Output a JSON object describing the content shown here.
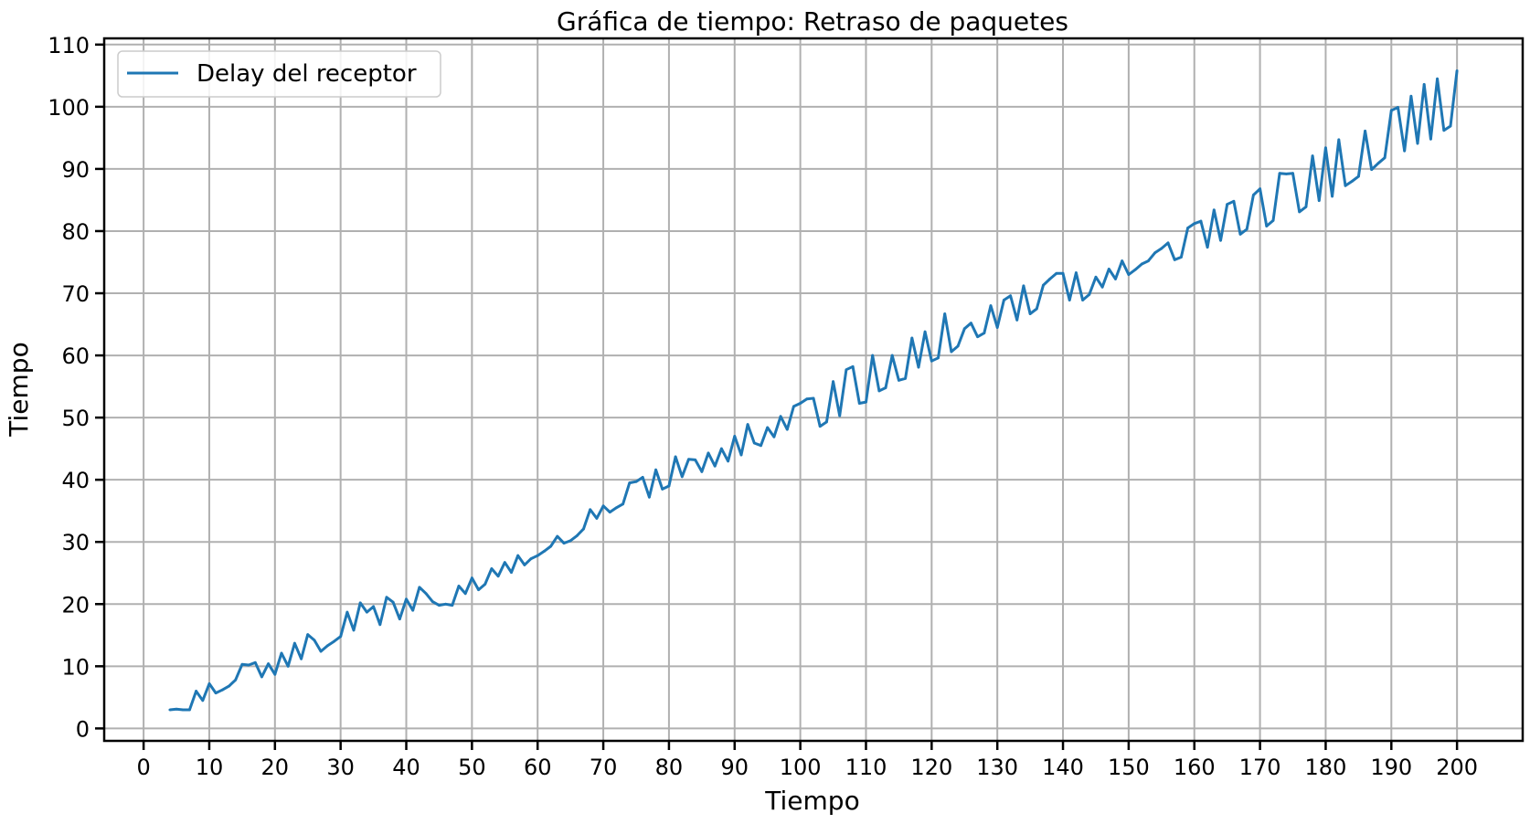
{
  "chart_data": {
    "type": "line",
    "title": "Gráfica de tiempo: Retraso de paquetes",
    "xlabel": "Tiempo",
    "ylabel": "Tiempo",
    "xlim": [
      -6,
      210
    ],
    "ylim": [
      -2,
      111
    ],
    "xticks": [
      0,
      10,
      20,
      30,
      40,
      50,
      60,
      70,
      80,
      90,
      100,
      110,
      120,
      130,
      140,
      150,
      160,
      170,
      180,
      190,
      200
    ],
    "yticks": [
      0,
      10,
      20,
      30,
      40,
      50,
      60,
      70,
      80,
      90,
      100,
      110
    ],
    "grid": true,
    "legend_position": "upper left",
    "series": [
      {
        "name": "Delay del receptor",
        "color": "#1f77b4",
        "points": [
          [
            4,
            3.0
          ],
          [
            5,
            3.1
          ],
          [
            6,
            3.0
          ],
          [
            7,
            3.0
          ],
          [
            8,
            6.0
          ],
          [
            9,
            4.5
          ],
          [
            10,
            7.2
          ],
          [
            11,
            5.7
          ],
          [
            12,
            6.2
          ],
          [
            13,
            6.8
          ],
          [
            14,
            7.8
          ],
          [
            15,
            10.3
          ],
          [
            16,
            10.2
          ],
          [
            17,
            10.6
          ],
          [
            18,
            8.3
          ],
          [
            19,
            10.4
          ],
          [
            20,
            8.7
          ],
          [
            21,
            12.1
          ],
          [
            22,
            10.0
          ],
          [
            23,
            13.7
          ],
          [
            24,
            11.2
          ],
          [
            25,
            15.1
          ],
          [
            26,
            14.2
          ],
          [
            27,
            12.4
          ],
          [
            28,
            13.3
          ],
          [
            29,
            14.0
          ],
          [
            30,
            14.8
          ],
          [
            31,
            18.7
          ],
          [
            32,
            15.8
          ],
          [
            33,
            20.2
          ],
          [
            34,
            18.7
          ],
          [
            35,
            19.6
          ],
          [
            36,
            16.7
          ],
          [
            37,
            21.1
          ],
          [
            38,
            20.3
          ],
          [
            39,
            17.6
          ],
          [
            40,
            20.8
          ],
          [
            41,
            19.0
          ],
          [
            42,
            22.7
          ],
          [
            43,
            21.7
          ],
          [
            44,
            20.4
          ],
          [
            45,
            19.8
          ],
          [
            46,
            20.0
          ],
          [
            47,
            19.8
          ],
          [
            48,
            22.9
          ],
          [
            49,
            21.7
          ],
          [
            50,
            24.2
          ],
          [
            51,
            22.3
          ],
          [
            52,
            23.2
          ],
          [
            53,
            25.7
          ],
          [
            54,
            24.5
          ],
          [
            55,
            26.7
          ],
          [
            56,
            25.1
          ],
          [
            57,
            27.8
          ],
          [
            58,
            26.3
          ],
          [
            59,
            27.3
          ],
          [
            60,
            27.8
          ],
          [
            61,
            28.5
          ],
          [
            62,
            29.3
          ],
          [
            63,
            30.9
          ],
          [
            64,
            29.8
          ],
          [
            65,
            30.2
          ],
          [
            66,
            31.0
          ],
          [
            67,
            32.1
          ],
          [
            68,
            35.2
          ],
          [
            69,
            33.8
          ],
          [
            70,
            35.8
          ],
          [
            71,
            34.8
          ],
          [
            72,
            35.5
          ],
          [
            73,
            36.1
          ],
          [
            74,
            39.5
          ],
          [
            75,
            39.7
          ],
          [
            76,
            40.4
          ],
          [
            77,
            37.2
          ],
          [
            78,
            41.6
          ],
          [
            79,
            38.5
          ],
          [
            80,
            39.0
          ],
          [
            81,
            43.7
          ],
          [
            82,
            40.5
          ],
          [
            83,
            43.3
          ],
          [
            84,
            43.2
          ],
          [
            85,
            41.3
          ],
          [
            86,
            44.3
          ],
          [
            87,
            42.2
          ],
          [
            88,
            45.0
          ],
          [
            89,
            43.0
          ],
          [
            90,
            47.0
          ],
          [
            91,
            44.0
          ],
          [
            92,
            48.9
          ],
          [
            93,
            45.9
          ],
          [
            94,
            45.5
          ],
          [
            95,
            48.4
          ],
          [
            96,
            46.9
          ],
          [
            97,
            50.2
          ],
          [
            98,
            48.1
          ],
          [
            99,
            51.8
          ],
          [
            100,
            52.3
          ],
          [
            101,
            53.0
          ],
          [
            102,
            53.1
          ],
          [
            103,
            48.6
          ],
          [
            104,
            49.3
          ],
          [
            105,
            55.8
          ],
          [
            106,
            50.3
          ],
          [
            107,
            57.7
          ],
          [
            108,
            58.2
          ],
          [
            109,
            52.3
          ],
          [
            110,
            52.5
          ],
          [
            111,
            60.0
          ],
          [
            112,
            54.3
          ],
          [
            113,
            54.8
          ],
          [
            114,
            60.0
          ],
          [
            115,
            56.0
          ],
          [
            116,
            56.3
          ],
          [
            117,
            62.8
          ],
          [
            118,
            58.1
          ],
          [
            119,
            63.8
          ],
          [
            120,
            59.1
          ],
          [
            121,
            59.6
          ],
          [
            122,
            66.7
          ],
          [
            123,
            60.6
          ],
          [
            124,
            61.5
          ],
          [
            125,
            64.3
          ],
          [
            126,
            65.2
          ],
          [
            127,
            63.0
          ],
          [
            128,
            63.6
          ],
          [
            129,
            68.0
          ],
          [
            130,
            64.5
          ],
          [
            131,
            68.9
          ],
          [
            132,
            69.6
          ],
          [
            133,
            65.7
          ],
          [
            134,
            71.2
          ],
          [
            135,
            66.7
          ],
          [
            136,
            67.5
          ],
          [
            137,
            71.3
          ],
          [
            138,
            72.3
          ],
          [
            139,
            73.2
          ],
          [
            140,
            73.2
          ],
          [
            141,
            68.9
          ],
          [
            142,
            73.3
          ],
          [
            143,
            68.9
          ],
          [
            144,
            69.8
          ],
          [
            145,
            72.6
          ],
          [
            146,
            71.0
          ],
          [
            147,
            73.9
          ],
          [
            148,
            72.3
          ],
          [
            149,
            75.2
          ],
          [
            150,
            73.0
          ],
          [
            151,
            73.8
          ],
          [
            152,
            74.7
          ],
          [
            153,
            75.2
          ],
          [
            154,
            76.5
          ],
          [
            155,
            77.2
          ],
          [
            156,
            78.1
          ],
          [
            157,
            75.4
          ],
          [
            158,
            75.8
          ],
          [
            159,
            80.5
          ],
          [
            160,
            81.2
          ],
          [
            161,
            81.6
          ],
          [
            162,
            77.4
          ],
          [
            163,
            83.4
          ],
          [
            164,
            78.5
          ],
          [
            165,
            84.3
          ],
          [
            166,
            84.8
          ],
          [
            167,
            79.5
          ],
          [
            168,
            80.3
          ],
          [
            169,
            85.8
          ],
          [
            170,
            86.8
          ],
          [
            171,
            80.8
          ],
          [
            172,
            81.7
          ],
          [
            173,
            89.3
          ],
          [
            174,
            89.2
          ],
          [
            175,
            89.3
          ],
          [
            176,
            83.1
          ],
          [
            177,
            83.9
          ],
          [
            178,
            92.1
          ],
          [
            179,
            84.9
          ],
          [
            180,
            93.4
          ],
          [
            181,
            85.6
          ],
          [
            182,
            94.7
          ],
          [
            183,
            87.3
          ],
          [
            184,
            88.0
          ],
          [
            185,
            88.8
          ],
          [
            186,
            96.1
          ],
          [
            187,
            89.9
          ],
          [
            188,
            90.9
          ],
          [
            189,
            91.8
          ],
          [
            190,
            99.4
          ],
          [
            191,
            99.9
          ],
          [
            192,
            92.9
          ],
          [
            193,
            101.7
          ],
          [
            194,
            94.1
          ],
          [
            195,
            103.6
          ],
          [
            196,
            94.8
          ],
          [
            197,
            104.5
          ],
          [
            198,
            96.2
          ],
          [
            199,
            96.9
          ],
          [
            200,
            105.8
          ]
        ]
      }
    ]
  }
}
